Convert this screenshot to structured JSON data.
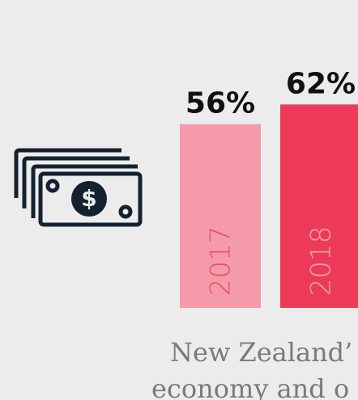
{
  "chart_data": {
    "type": "bar",
    "categories": [
      "2017",
      "2018"
    ],
    "values": [
      56,
      62
    ],
    "value_labels": [
      "56%",
      "62%"
    ],
    "colors": [
      "#f49aa9",
      "#ec3a58"
    ],
    "caption": [
      "New Zealand’",
      "economy and o"
    ]
  }
}
